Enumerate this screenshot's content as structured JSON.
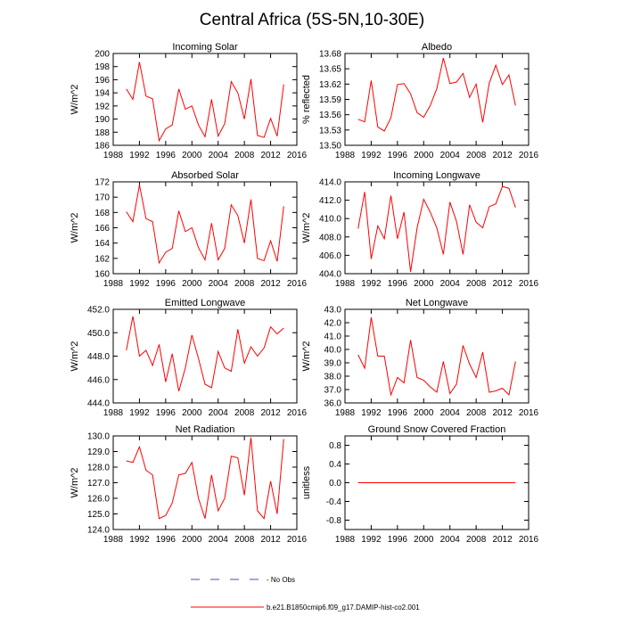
{
  "title": "Central Africa (5S-5N,10-30E)",
  "legend": {
    "no_obs_label": "- No Obs",
    "model_label": "b.e21.B1850cmip6.f09_g17.DAMIP-hist-co2.001"
  },
  "colors": {
    "series": "#ff0000",
    "no_obs": "#4b4bb4"
  },
  "chart_data": [
    {
      "type": "line",
      "title": "Incoming Solar",
      "ylabel": "W/m^2",
      "xlim": [
        1988,
        2016
      ],
      "xticks": [
        "1988",
        "1992",
        "1996",
        "2000",
        "2004",
        "2008",
        "2012",
        "2016"
      ],
      "ylim": [
        186,
        200
      ],
      "yticks": [
        "186",
        "188",
        "190",
        "192",
        "194",
        "196",
        "198",
        "200"
      ],
      "x": [
        1990,
        1991,
        1992,
        1993,
        1994,
        1995,
        1996,
        1997,
        1998,
        1999,
        2000,
        2001,
        2002,
        2003,
        2004,
        2005,
        2006,
        2007,
        2008,
        2009,
        2010,
        2011,
        2012,
        2013,
        2014
      ],
      "series": [
        {
          "values": [
            194.6,
            193.0,
            198.7,
            193.5,
            193.1,
            186.7,
            188.5,
            189.1,
            194.6,
            191.5,
            192.0,
            189.1,
            187.3,
            193.0,
            187.4,
            189.3,
            195.7,
            194.0,
            190.0,
            196.1,
            187.5,
            187.2,
            190.1,
            187.4,
            195.3
          ]
        }
      ]
    },
    {
      "type": "line",
      "title": "Albedo",
      "ylabel": "% reflected",
      "xlim": [
        1988,
        2016
      ],
      "xticks": [
        "1988",
        "1992",
        "1996",
        "2000",
        "2004",
        "2008",
        "2012",
        "2016"
      ],
      "ylim": [
        13.5,
        13.68
      ],
      "yticks": [
        "13.50",
        "13.53",
        "13.56",
        "13.59",
        "13.62",
        "13.65",
        "13.68"
      ],
      "x": [
        1990,
        1991,
        1992,
        1993,
        1994,
        1995,
        1996,
        1997,
        1998,
        1999,
        2000,
        2001,
        2002,
        2003,
        2004,
        2005,
        2006,
        2007,
        2008,
        2009,
        2010,
        2011,
        2012,
        2013,
        2014
      ],
      "series": [
        {
          "values": [
            13.551,
            13.546,
            13.627,
            13.536,
            13.528,
            13.554,
            13.619,
            13.621,
            13.601,
            13.564,
            13.555,
            13.578,
            13.611,
            13.671,
            13.621,
            13.624,
            13.641,
            13.594,
            13.62,
            13.545,
            13.622,
            13.657,
            13.619,
            13.638,
            13.578
          ]
        }
      ]
    },
    {
      "type": "line",
      "title": "Absorbed Solar",
      "ylabel": "W/m^2",
      "xlim": [
        1988,
        2016
      ],
      "xticks": [
        "1988",
        "1992",
        "1996",
        "2000",
        "2004",
        "2008",
        "2012",
        "2016"
      ],
      "ylim": [
        160,
        172
      ],
      "yticks": [
        "160",
        "162",
        "164",
        "166",
        "168",
        "170",
        "172"
      ],
      "x": [
        1990,
        1991,
        1992,
        1993,
        1994,
        1995,
        1996,
        1997,
        1998,
        1999,
        2000,
        2001,
        2002,
        2003,
        2004,
        2005,
        2006,
        2007,
        2008,
        2009,
        2010,
        2011,
        2012,
        2013,
        2014
      ],
      "series": [
        {
          "values": [
            168.1,
            166.8,
            171.6,
            167.2,
            166.8,
            161.4,
            162.8,
            163.3,
            168.2,
            165.5,
            166.0,
            163.4,
            161.8,
            166.6,
            161.8,
            163.3,
            169.0,
            167.6,
            164.0,
            169.7,
            162.0,
            161.7,
            164.3,
            161.6,
            168.8
          ]
        }
      ]
    },
    {
      "type": "line",
      "title": "Incoming Longwave",
      "ylabel": "W/m^2",
      "xlim": [
        1988,
        2016
      ],
      "xticks": [
        "1988",
        "1992",
        "1996",
        "2000",
        "2004",
        "2008",
        "2012",
        "2016"
      ],
      "ylim": [
        404.0,
        414.0
      ],
      "yticks": [
        "404.0",
        "406.0",
        "408.0",
        "410.0",
        "412.0",
        "414.0"
      ],
      "x": [
        1990,
        1991,
        1992,
        1993,
        1994,
        1995,
        1996,
        1997,
        1998,
        1999,
        2000,
        2001,
        2002,
        2003,
        2004,
        2005,
        2006,
        2007,
        2008,
        2009,
        2010,
        2011,
        2012,
        2013,
        2014
      ],
      "series": [
        {
          "values": [
            408.9,
            412.9,
            405.6,
            409.2,
            407.8,
            412.5,
            407.8,
            410.7,
            404.2,
            409.0,
            412.1,
            410.7,
            409.0,
            406.1,
            411.8,
            409.7,
            406.1,
            411.5,
            409.6,
            409.0,
            411.3,
            411.6,
            413.5,
            413.3,
            411.2
          ]
        }
      ]
    },
    {
      "type": "line",
      "title": "Emitted Longwave",
      "ylabel": "W/m^2",
      "xlim": [
        1988,
        2016
      ],
      "xticks": [
        "1988",
        "1992",
        "1996",
        "2000",
        "2004",
        "2008",
        "2012",
        "2016"
      ],
      "ylim": [
        444.0,
        452.0
      ],
      "yticks": [
        "444.0",
        "446.0",
        "448.0",
        "450.0",
        "452.0"
      ],
      "x": [
        1990,
        1991,
        1992,
        1993,
        1994,
        1995,
        1996,
        1997,
        1998,
        1999,
        2000,
        2001,
        2002,
        2003,
        2004,
        2005,
        2006,
        2007,
        2008,
        2009,
        2010,
        2011,
        2012,
        2013,
        2014
      ],
      "series": [
        {
          "values": [
            448.5,
            451.4,
            448.0,
            448.5,
            447.2,
            449.0,
            445.8,
            448.2,
            445.0,
            447.0,
            449.8,
            447.8,
            445.6,
            445.3,
            448.4,
            447.0,
            446.7,
            450.3,
            447.4,
            448.8,
            448.0,
            448.7,
            450.5,
            449.9,
            450.4
          ]
        }
      ]
    },
    {
      "type": "line",
      "title": "Net Longwave",
      "ylabel": "W/m^2",
      "xlim": [
        1988,
        2016
      ],
      "xticks": [
        "1988",
        "1992",
        "1996",
        "2000",
        "2004",
        "2008",
        "2012",
        "2016"
      ],
      "ylim": [
        36.0,
        43.0
      ],
      "yticks": [
        "36.0",
        "37.0",
        "38.0",
        "39.0",
        "40.0",
        "41.0",
        "42.0",
        "43.0"
      ],
      "x": [
        1990,
        1991,
        1992,
        1993,
        1994,
        1995,
        1996,
        1997,
        1998,
        1999,
        2000,
        2001,
        2002,
        2003,
        2004,
        2005,
        2006,
        2007,
        2008,
        2009,
        2010,
        2011,
        2012,
        2013,
        2014
      ],
      "series": [
        {
          "values": [
            39.6,
            38.6,
            42.4,
            39.5,
            39.5,
            36.6,
            37.9,
            37.5,
            40.7,
            37.9,
            37.7,
            37.2,
            36.8,
            39.1,
            36.7,
            37.4,
            40.3,
            38.9,
            37.9,
            39.8,
            36.8,
            36.9,
            37.1,
            36.6,
            39.1
          ]
        }
      ]
    },
    {
      "type": "line",
      "title": "Net Radiation",
      "ylabel": "W/m^2",
      "xlim": [
        1988,
        2016
      ],
      "xticks": [
        "1988",
        "1992",
        "1996",
        "2000",
        "2004",
        "2008",
        "2012",
        "2016"
      ],
      "ylim": [
        124.0,
        130.0
      ],
      "yticks": [
        "124.0",
        "125.0",
        "126.0",
        "127.0",
        "128.0",
        "129.0",
        "130.0"
      ],
      "x": [
        1990,
        1991,
        1992,
        1993,
        1994,
        1995,
        1996,
        1997,
        1998,
        1999,
        2000,
        2001,
        2002,
        2003,
        2004,
        2005,
        2006,
        2007,
        2008,
        2009,
        2010,
        2011,
        2012,
        2013,
        2014
      ],
      "series": [
        {
          "values": [
            128.4,
            128.3,
            129.3,
            127.8,
            127.5,
            124.7,
            124.9,
            125.7,
            127.5,
            127.6,
            128.3,
            126.0,
            124.7,
            127.5,
            125.2,
            126.0,
            128.7,
            128.6,
            126.2,
            129.9,
            125.2,
            124.7,
            127.1,
            125.0,
            129.8
          ]
        }
      ]
    },
    {
      "type": "line",
      "title": "Ground Snow Covered Fraction",
      "ylabel": "unitless",
      "xlim": [
        1988,
        2016
      ],
      "xticks": [
        "1988",
        "1992",
        "1996",
        "2000",
        "2004",
        "2008",
        "2012",
        "2016"
      ],
      "ylim": [
        -1.0,
        1.0
      ],
      "yticks": [
        "-0.8",
        "-0.4",
        "0.0",
        "0.4",
        "0.8"
      ],
      "ytick_values": [
        -0.8,
        -0.4,
        0.0,
        0.4,
        0.8
      ],
      "x": [
        1990,
        1991,
        1992,
        1993,
        1994,
        1995,
        1996,
        1997,
        1998,
        1999,
        2000,
        2001,
        2002,
        2003,
        2004,
        2005,
        2006,
        2007,
        2008,
        2009,
        2010,
        2011,
        2012,
        2013,
        2014
      ],
      "series": [
        {
          "values": [
            0,
            0,
            0,
            0,
            0,
            0,
            0,
            0,
            0,
            0,
            0,
            0,
            0,
            0,
            0,
            0,
            0,
            0,
            0,
            0,
            0,
            0,
            0,
            0,
            0
          ]
        }
      ]
    }
  ]
}
